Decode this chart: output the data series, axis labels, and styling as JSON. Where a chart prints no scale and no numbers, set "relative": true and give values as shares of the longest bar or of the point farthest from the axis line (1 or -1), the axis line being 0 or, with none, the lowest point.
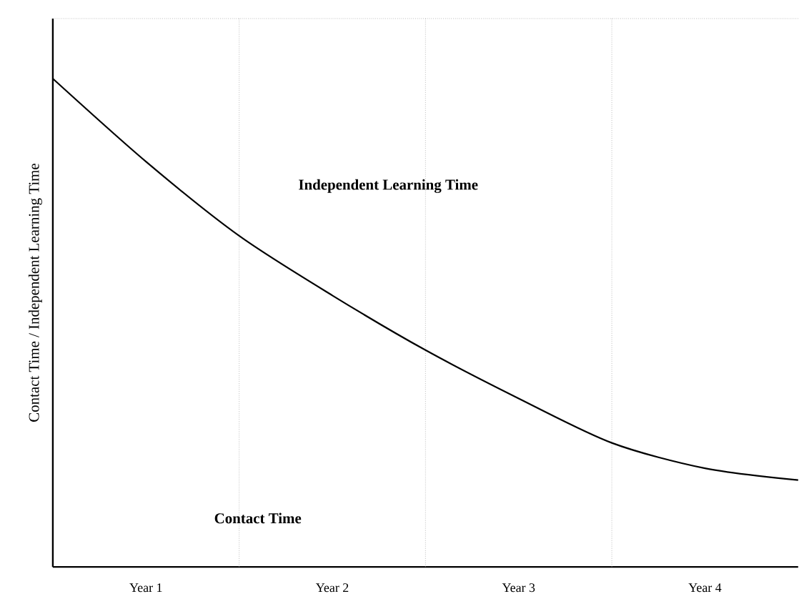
{
  "chart_data": {
    "type": "line",
    "relative": true,
    "ylabel": "Contact Time / Independent Learning Time",
    "categories": [
      null,
      "Year 1",
      null,
      "Year 2",
      null,
      "Year 3",
      null,
      "Year 4",
      null
    ],
    "values": [
      1,
      0.83,
      0.678,
      0.556,
      0.444,
      0.345,
      0.254,
      0.202,
      0.178
    ],
    "color": "#000000",
    "marker": "none",
    "line_style": "solid",
    "annotations": [
      "Independent Learning Time",
      "Contact Time"
    ],
    "grid": "x"
  }
}
